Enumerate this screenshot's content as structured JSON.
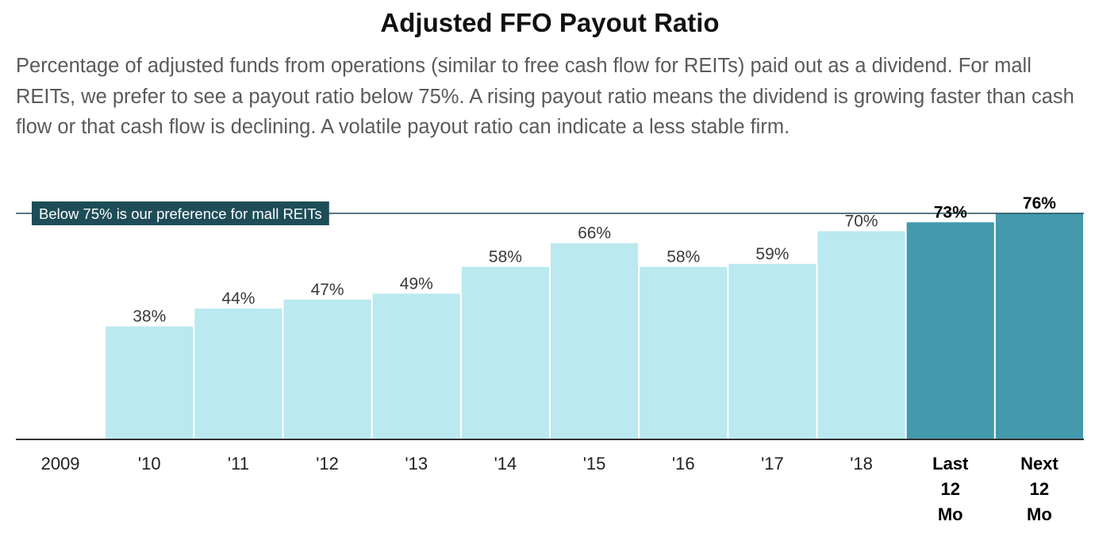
{
  "chart_data": {
    "type": "bar",
    "title": "Adjusted FFO Payout Ratio",
    "subtitle": "Percentage of adjusted funds from operations (similar to free cash flow for REITs) paid out as a dividend. For mall REITs, we prefer to see a payout ratio below 75%. A rising payout ratio means the dividend is growing faster than cash flow or that cash flow is declining. A volatile payout ratio can indicate a less stable firm.",
    "categories": [
      "2009",
      "'10",
      "'11",
      "'12",
      "'13",
      "'14",
      "'15",
      "'16",
      "'17",
      "'18",
      "Last 12 Mo",
      "Next 12 Mo"
    ],
    "values": [
      null,
      38,
      44,
      47,
      49,
      58,
      66,
      58,
      59,
      70,
      73,
      76
    ],
    "data_labels": [
      "",
      "38%",
      "44%",
      "47%",
      "49%",
      "58%",
      "66%",
      "58%",
      "59%",
      "70%",
      "73%",
      "76%"
    ],
    "highlighted": [
      false,
      false,
      false,
      false,
      false,
      false,
      false,
      false,
      false,
      false,
      true,
      true
    ],
    "reference_line": {
      "value": 75,
      "label": "Below 75% is our preference for mall REITs"
    },
    "ylim": [
      0,
      76
    ],
    "xlabel": "",
    "ylabel": "",
    "grid": false,
    "legend": "none",
    "colors": {
      "bar": "#bae9ef",
      "highlight": "#4499ac",
      "reference": "#1e4d58",
      "axis": "#333333"
    }
  }
}
